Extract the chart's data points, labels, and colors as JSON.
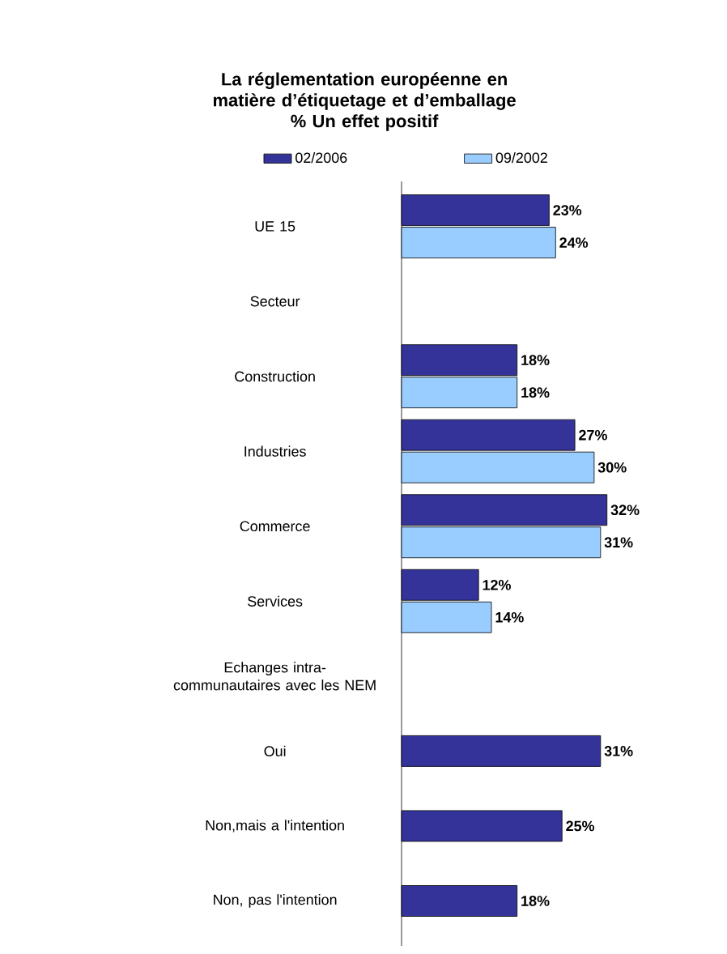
{
  "chart_data": {
    "type": "bar",
    "orientation": "horizontal",
    "title": "La réglementation européenne en matière d’étiquetage et d’emballage",
    "subtitle": "% Un effet positif",
    "legend": "top",
    "categories": [
      "UE 15",
      "Secteur",
      "Construction",
      "Industries",
      "Commerce",
      "Services",
      "Echanges intra-communautaires avec les NEM",
      "Oui",
      "Non,mais a l'intention",
      "Non, pas l'intention"
    ],
    "series": [
      {
        "name": "02/2006",
        "color": "#333399",
        "values": [
          23,
          null,
          18,
          27,
          32,
          12,
          null,
          31,
          25,
          18
        ],
        "value_labels": [
          "23%",
          null,
          "18%",
          "27%",
          "32%",
          "12%",
          null,
          "31%",
          "25%",
          "18%"
        ]
      },
      {
        "name": "09/2002",
        "color": "#99ccff",
        "values": [
          24,
          null,
          18,
          30,
          31,
          14,
          null,
          null,
          null,
          null
        ],
        "value_labels": [
          "24%",
          null,
          "18%",
          "30%",
          "31%",
          "14%",
          null,
          null,
          null,
          null
        ]
      }
    ]
  }
}
